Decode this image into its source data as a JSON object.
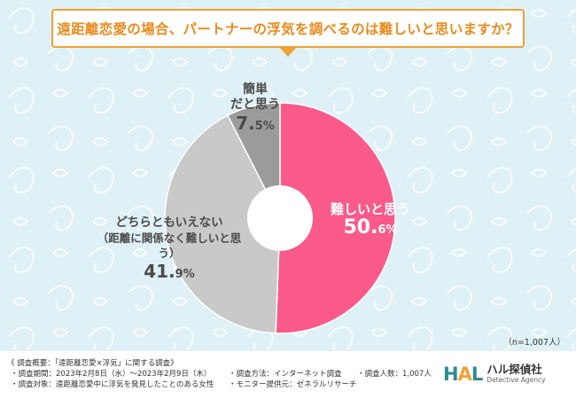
{
  "header": {
    "title": "遠距離恋愛の場合、パートナーの浮気を調べるのは難しいと思いますか？"
  },
  "chart_data": {
    "type": "pie",
    "slices": [
      {
        "label": "難しいと思う",
        "value": 50.6,
        "value_main": "50.",
        "value_dec": "6%",
        "color": "#fa5a8a"
      },
      {
        "label": "どちらともいえない",
        "sublabel": "（距離に関係なく難しいと思う）",
        "value": 41.9,
        "value_main": "41.",
        "value_dec": "9%",
        "color": "#c9c9c9"
      },
      {
        "label_line1": "簡単",
        "label_line2": "だと思う",
        "value": 7.5,
        "value_main": "7.",
        "value_dec": "5%",
        "color": "#9b9b9b"
      }
    ]
  },
  "sample_size": "（n=1,007人）",
  "footer": {
    "overview": "《 調査概要：「遠距離恋愛×浮気」に関する調査》",
    "period": "・調査期間：2023年2月8日（水）～2023年2月9日（木）",
    "subject": "・調査対象：遠距離恋愛中に浮気を発見したことのある女性",
    "method": "・調査方法：インターネット調査",
    "monitor": "・モニター提供元：ゼネラルリサーチ",
    "count": "・調査人数：1,007人"
  },
  "logo": {
    "mark_h": "H",
    "mark_a": "A",
    "mark_l": "L",
    "name": "ハル探偵社",
    "sub": "Detective Agency"
  }
}
